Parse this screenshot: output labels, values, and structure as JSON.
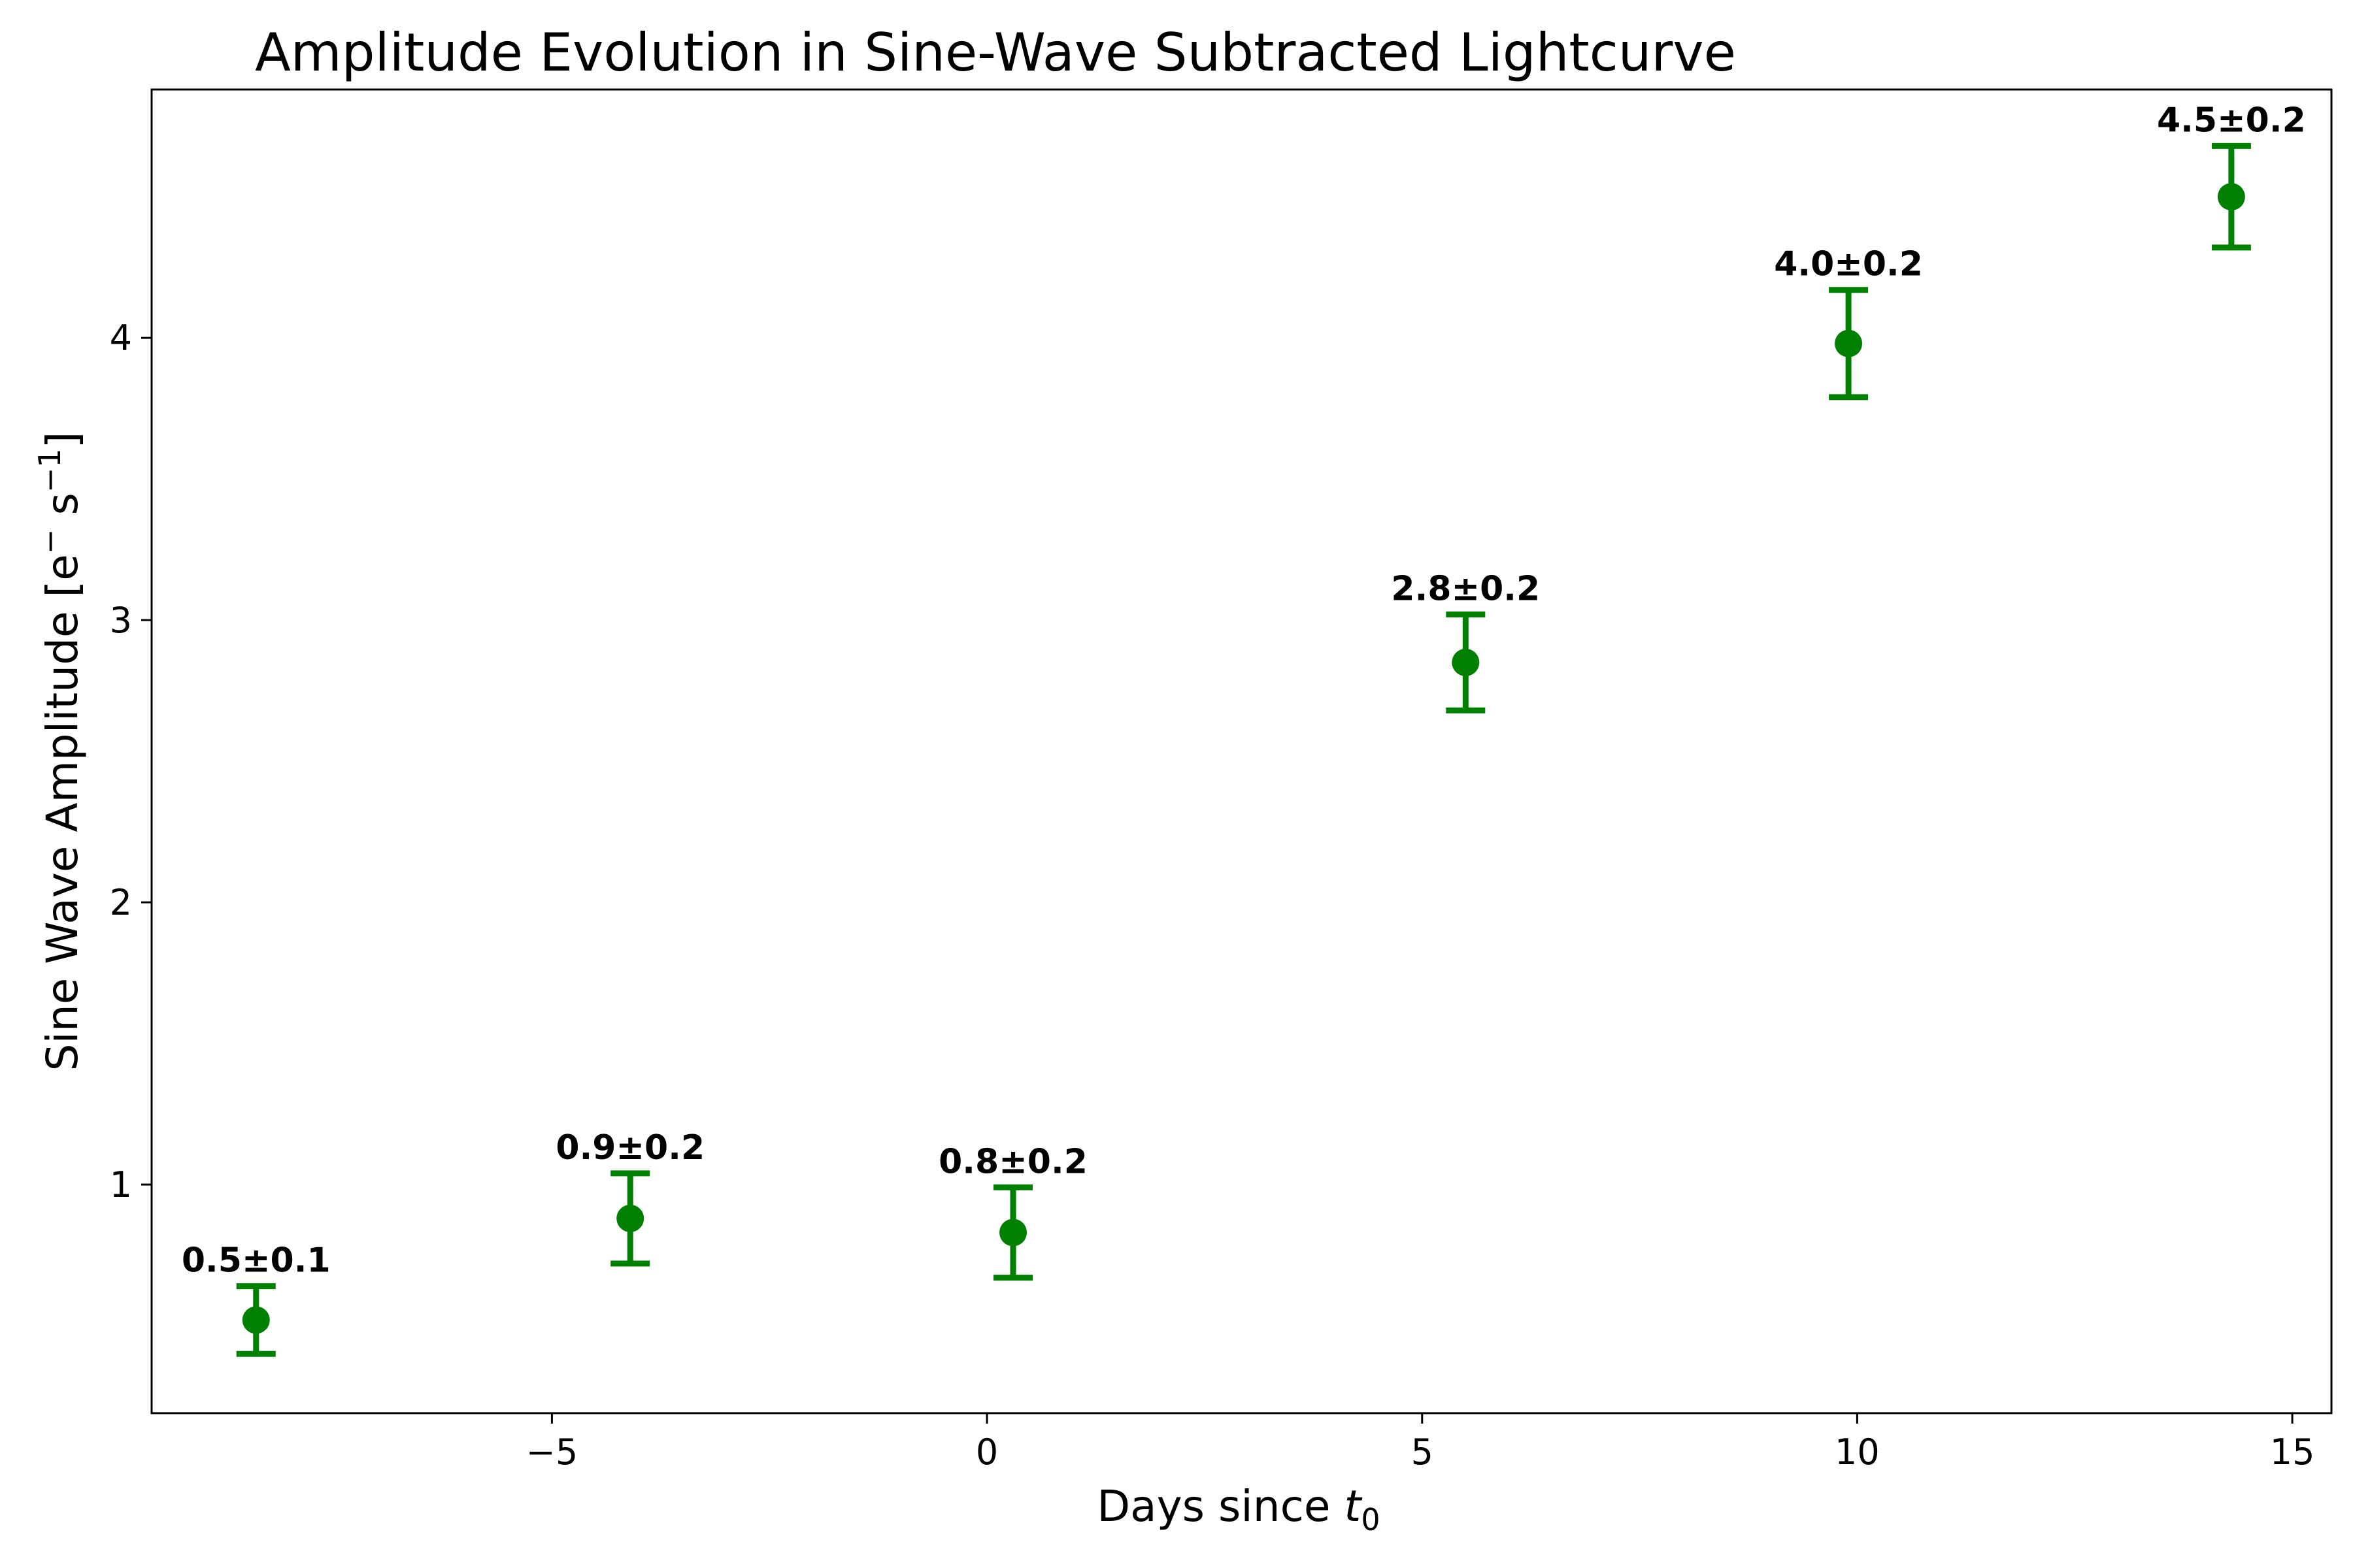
{
  "chart_data": {
    "type": "scatter",
    "title": "Amplitude Evolution in Sine-Wave Subtracted Lightcurve",
    "xlabel_main": "Days since ",
    "xlabel_var": "t",
    "xlabel_sub": "0",
    "ylabel_main": "Sine Wave Amplitude [e",
    "ylabel_sup1": "−",
    "ylabel_mid": " s",
    "ylabel_sup2": "−1",
    "ylabel_end": "]",
    "xlim": [
      -9.6,
      15.45
    ],
    "ylim": [
      0.19,
      4.88
    ],
    "x_ticks": [
      -5,
      0,
      5,
      10,
      15
    ],
    "x_tick_labels": [
      "−5",
      "0",
      "5",
      "10",
      "15"
    ],
    "y_ticks": [
      1,
      2,
      3,
      4
    ],
    "y_tick_labels": [
      "1",
      "2",
      "3",
      "4"
    ],
    "grid": false,
    "color": "#008000",
    "points": [
      {
        "x": -8.4,
        "y": 0.52,
        "err": 0.12,
        "label": "0.5±0.1"
      },
      {
        "x": -4.1,
        "y": 0.88,
        "err": 0.16,
        "label": "0.9±0.2"
      },
      {
        "x": 0.3,
        "y": 0.83,
        "err": 0.16,
        "label": "0.8±0.2"
      },
      {
        "x": 5.5,
        "y": 2.85,
        "err": 0.17,
        "label": "2.8±0.2"
      },
      {
        "x": 9.9,
        "y": 3.98,
        "err": 0.19,
        "label": "4.0±0.2"
      },
      {
        "x": 14.3,
        "y": 4.5,
        "err": 0.18,
        "label": "4.5±0.2"
      }
    ]
  }
}
